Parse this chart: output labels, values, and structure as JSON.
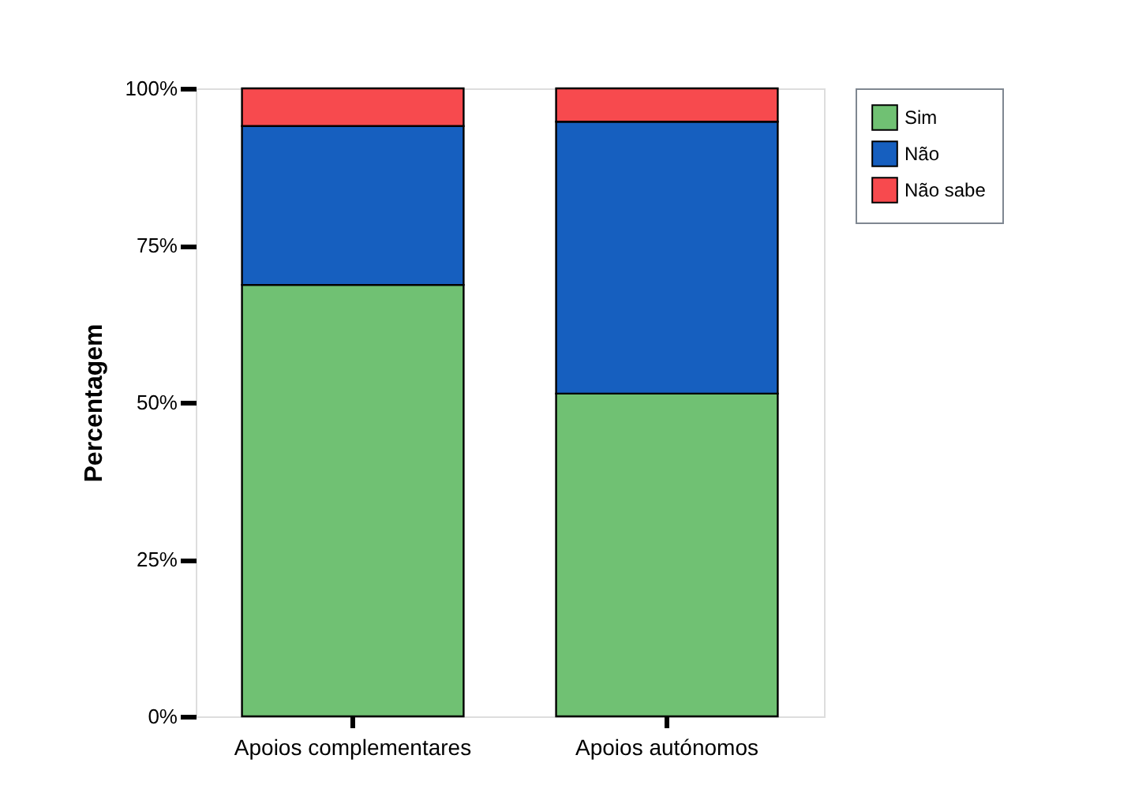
{
  "chart_data": {
    "type": "bar",
    "stacked": true,
    "ylabel": "Percentagem",
    "categories": [
      "Apoios complementares",
      "Apoios autónomos"
    ],
    "series": [
      {
        "name": "Sim",
        "color": "#70c173",
        "values": [
          68.7,
          51.4
        ]
      },
      {
        "name": "Não",
        "color": "#165fbf",
        "values": [
          25.3,
          43.3
        ]
      },
      {
        "name": "Não sabe",
        "color": "#f74a4e",
        "values": [
          6.0,
          5.3
        ]
      }
    ],
    "ylim": [
      0,
      100
    ],
    "yticks": [
      {
        "value": 0,
        "label": "0%"
      },
      {
        "value": 25,
        "label": "25%"
      },
      {
        "value": 50,
        "label": "50%"
      },
      {
        "value": 75,
        "label": "75%"
      },
      {
        "value": 100,
        "label": "100%"
      }
    ],
    "grid": false,
    "legend": "top right"
  }
}
